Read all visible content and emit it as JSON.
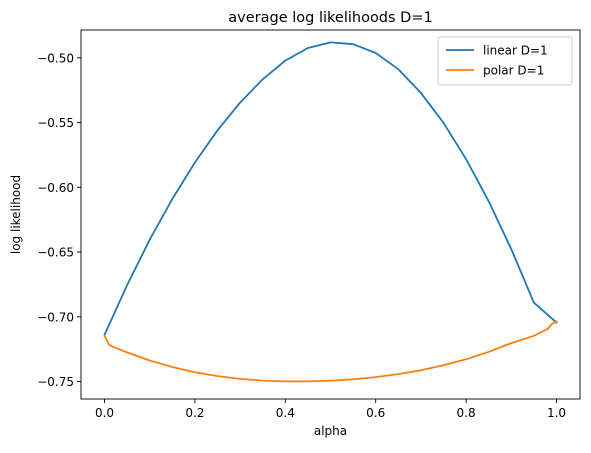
{
  "chart_data": {
    "type": "line",
    "title": "average log likelihoods D=1",
    "xlabel": "alpha",
    "ylabel": "log likelihood",
    "xlim": [
      -0.052,
      1.052
    ],
    "ylim": [
      -0.7635,
      -0.4785
    ],
    "xticks": [
      0.0,
      0.2,
      0.4,
      0.6,
      0.8,
      1.0
    ],
    "xtick_labels": [
      "0.0",
      "0.2",
      "0.4",
      "0.6",
      "0.8",
      "1.0"
    ],
    "yticks": [
      -0.75,
      -0.7,
      -0.65,
      -0.6,
      -0.55,
      -0.5
    ],
    "ytick_labels": [
      "−0.75",
      "−0.70",
      "−0.65",
      "−0.60",
      "−0.55",
      "−0.50"
    ],
    "grid": false,
    "legend_position": "top-right",
    "series": [
      {
        "name": "linear D=1",
        "color": "#1f77b4",
        "x": [
          0.0,
          0.05,
          0.1,
          0.15,
          0.2,
          0.25,
          0.3,
          0.35,
          0.4,
          0.45,
          0.5,
          0.55,
          0.6,
          0.65,
          0.7,
          0.75,
          0.8,
          0.85,
          0.9,
          0.95,
          1.0
        ],
        "y": [
          -0.714,
          -0.6755,
          -0.6405,
          -0.609,
          -0.5808,
          -0.556,
          -0.5346,
          -0.5166,
          -0.5021,
          -0.4924,
          -0.4881,
          -0.4895,
          -0.4963,
          -0.5088,
          -0.5271,
          -0.5502,
          -0.5783,
          -0.6108,
          -0.6477,
          -0.6891,
          -0.7045
        ]
      },
      {
        "name": "polar D=1",
        "color": "#ff7f0e",
        "x": [
          0.0,
          0.01,
          0.02,
          0.05,
          0.1,
          0.15,
          0.2,
          0.25,
          0.3,
          0.35,
          0.4,
          0.45,
          0.5,
          0.55,
          0.6,
          0.65,
          0.7,
          0.75,
          0.8,
          0.85,
          0.9,
          0.95,
          0.98,
          0.99,
          1.0
        ],
        "y": [
          -0.7145,
          -0.7215,
          -0.7235,
          -0.7275,
          -0.7338,
          -0.7388,
          -0.7428,
          -0.7458,
          -0.748,
          -0.7493,
          -0.7499,
          -0.7499,
          -0.7494,
          -0.7483,
          -0.7466,
          -0.7443,
          -0.7413,
          -0.7375,
          -0.7328,
          -0.7271,
          -0.7203,
          -0.7147,
          -0.7095,
          -0.7055,
          -0.7035
        ]
      }
    ]
  }
}
